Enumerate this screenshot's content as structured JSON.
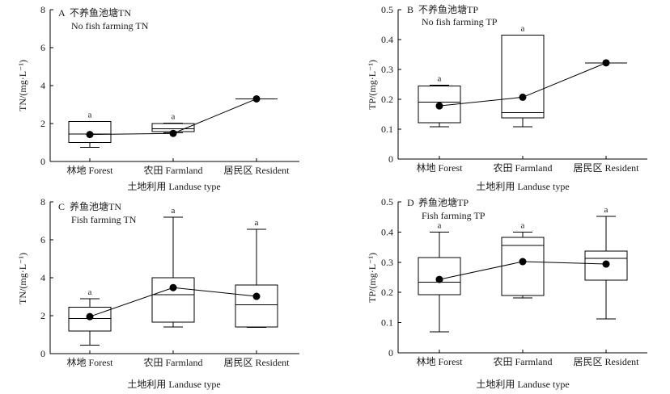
{
  "chart_data": [
    {
      "type": "box",
      "panel": "A",
      "title": "不养鱼池塘TN",
      "subtitle": "No fish farming TN",
      "xlabel": "土地利用 Landuse type",
      "ylabel": "TN/(mg·L⁻¹)",
      "categories": [
        "林地 Forest",
        "农田 Farmland",
        "居民区 Resident"
      ],
      "ylim": [
        0,
        8
      ],
      "yticks": [
        0,
        2,
        4,
        6,
        8
      ],
      "grid": false,
      "legend": false,
      "mean_line": true,
      "boxes": [
        {
          "min": 0.75,
          "q1": 1.0,
          "median": 1.45,
          "q3": 2.1,
          "max": 2.1,
          "mean": 1.42,
          "letter": "a"
        },
        {
          "min": 1.52,
          "q1": 1.58,
          "median": 1.72,
          "q3": 2.0,
          "max": 2.02,
          "mean": 1.48,
          "letter": "a"
        },
        {
          "min": 3.3,
          "q1": 3.3,
          "median": 3.3,
          "q3": 3.3,
          "max": 3.3,
          "mean": 3.3
        }
      ]
    },
    {
      "type": "box",
      "panel": "B",
      "title": "不养鱼池塘TP",
      "subtitle": "No fish farming TP",
      "xlabel": "土地利用 Landuse type",
      "ylabel": "TP/(mg·L⁻¹)",
      "categories": [
        "林地 Forest",
        "农田 Farmland",
        "居民区 Resident"
      ],
      "ylim": [
        0,
        0.5
      ],
      "yticks": [
        0,
        0.1,
        0.2,
        0.3,
        0.4,
        0.5
      ],
      "grid": false,
      "legend": false,
      "mean_line": true,
      "boxes": [
        {
          "min": 0.108,
          "q1": 0.122,
          "median": 0.19,
          "q3": 0.245,
          "max": 0.247,
          "mean": 0.178,
          "letter": "a"
        },
        {
          "min": 0.108,
          "q1": 0.138,
          "median": 0.155,
          "q3": 0.415,
          "max": 0.415,
          "mean": 0.207,
          "letter": "a"
        },
        {
          "min": 0.322,
          "q1": 0.322,
          "median": 0.322,
          "q3": 0.322,
          "max": 0.322,
          "mean": 0.322
        }
      ]
    },
    {
      "type": "box",
      "panel": "C",
      "title": "养鱼池塘TN",
      "subtitle": "Fish farming TN",
      "xlabel": "土地利用 Landuse type",
      "ylabel": "TN/(mg·L⁻¹)",
      "categories": [
        "林地 Forest",
        "农田 Farmland",
        "居民区 Resident"
      ],
      "ylim": [
        0,
        8
      ],
      "yticks": [
        0,
        2,
        4,
        6,
        8
      ],
      "grid": false,
      "legend": false,
      "mean_line": true,
      "boxes": [
        {
          "min": 0.45,
          "q1": 1.2,
          "median": 1.85,
          "q3": 2.45,
          "max": 2.9,
          "mean": 1.95,
          "letter": "a"
        },
        {
          "min": 1.4,
          "q1": 1.65,
          "median": 3.1,
          "q3": 4.0,
          "max": 7.2,
          "mean": 3.48,
          "letter": "a"
        },
        {
          "min": 1.38,
          "q1": 1.4,
          "median": 2.58,
          "q3": 3.62,
          "max": 6.55,
          "mean": 3.02,
          "letter": "a"
        }
      ]
    },
    {
      "type": "box",
      "panel": "D",
      "title": "养鱼池塘TP",
      "subtitle": "Fish farming TP",
      "xlabel": "土地利用 Landuse type",
      "ylabel": "TP/(mg·L⁻¹)",
      "categories": [
        "林地 Forest",
        "农田 Farmland",
        "居民区 Resident"
      ],
      "ylim": [
        0,
        0.5
      ],
      "yticks": [
        0,
        0.1,
        0.2,
        0.3,
        0.4,
        0.5
      ],
      "grid": false,
      "legend": false,
      "mean_line": true,
      "boxes": [
        {
          "min": 0.07,
          "q1": 0.193,
          "median": 0.234,
          "q3": 0.315,
          "max": 0.4,
          "mean": 0.243,
          "letter": "a"
        },
        {
          "min": 0.182,
          "q1": 0.19,
          "median": 0.355,
          "q3": 0.383,
          "max": 0.4,
          "mean": 0.302,
          "letter": "a"
        },
        {
          "min": 0.112,
          "q1": 0.24,
          "median": 0.313,
          "q3": 0.337,
          "max": 0.452,
          "mean": 0.294,
          "letter": "a"
        }
      ]
    }
  ]
}
